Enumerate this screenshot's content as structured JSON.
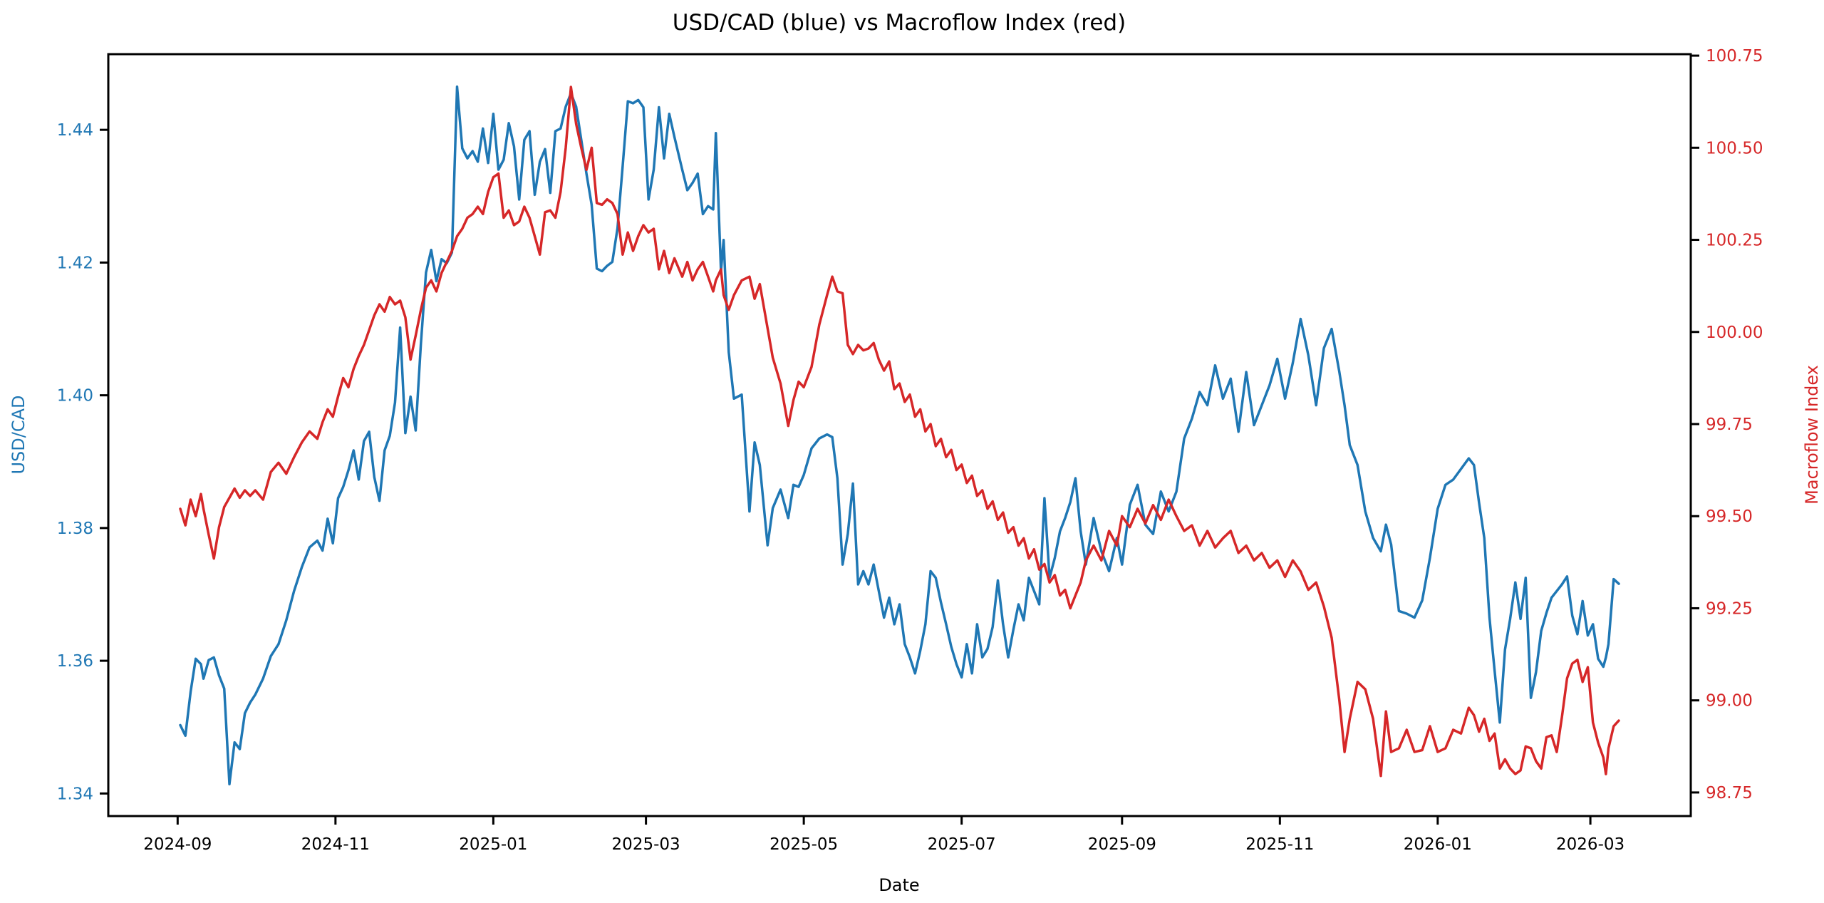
{
  "chart_data": {
    "type": "line",
    "title": "USD/CAD (blue) vs Macroflow Index (red)",
    "grid": false,
    "legend_position": "none",
    "x_axis": {
      "label": "Date",
      "unit": "days since 2024-09-02",
      "tick_labels": [
        "2024-09",
        "2024-11",
        "2025-01",
        "2025-03",
        "2025-05",
        "2025-07",
        "2025-09",
        "2025-11",
        "2026-01",
        "2026-03"
      ],
      "tick_days": [
        -1,
        60,
        121,
        180,
        241,
        302,
        364,
        425,
        486,
        545
      ]
    },
    "left_axis": {
      "label": "USD/CAD",
      "color": "#1f77b4",
      "range": [
        1.3366,
        1.4514
      ],
      "ticks": [
        1.34,
        1.36,
        1.38,
        1.4,
        1.42,
        1.44
      ],
      "tick_labels": [
        "1.34",
        "1.36",
        "1.38",
        "1.40",
        "1.42",
        "1.44"
      ]
    },
    "right_axis": {
      "label": "Macroflow Index",
      "color": "#d62728",
      "range": [
        98.686,
        100.754
      ],
      "ticks": [
        98.75,
        99.0,
        99.25,
        99.5,
        99.75,
        100.0,
        100.25,
        100.5,
        100.75
      ],
      "tick_labels": [
        "98.75",
        "99.00",
        "99.25",
        "99.50",
        "99.75",
        "100.00",
        "100.25",
        "100.50",
        "100.75"
      ]
    },
    "x": [
      0,
      2,
      4,
      6,
      8,
      9,
      11,
      13,
      15,
      17,
      19,
      21,
      23,
      25,
      27,
      29,
      32,
      35,
      38,
      41,
      44,
      47,
      50,
      53,
      55,
      57,
      59,
      61,
      63,
      65,
      67,
      69,
      71,
      73,
      75,
      77,
      79,
      81,
      83,
      85,
      87,
      89,
      91,
      93,
      95,
      97,
      99,
      101,
      103,
      105,
      107,
      109,
      111,
      113,
      115,
      117,
      119,
      121,
      123,
      125,
      127,
      129,
      131,
      133,
      135,
      137,
      139,
      141,
      143,
      145,
      147,
      149,
      151,
      153,
      155,
      157,
      159,
      161,
      163,
      165,
      167,
      169,
      171,
      173,
      175,
      177,
      179,
      181,
      183,
      185,
      187,
      189,
      191,
      194,
      196,
      198,
      200,
      202,
      204,
      206,
      207,
      209,
      210,
      212,
      214,
      217,
      220,
      222,
      224,
      227,
      229,
      232,
      235,
      237,
      239,
      241,
      244,
      247,
      250,
      252,
      254,
      256,
      258,
      260,
      262,
      264,
      266,
      268,
      270,
      272,
      274,
      276,
      278,
      280,
      282,
      284,
      286,
      288,
      290,
      292,
      294,
      296,
      298,
      300,
      302,
      304,
      306,
      308,
      310,
      312,
      314,
      316,
      318,
      320,
      322,
      324,
      326,
      328,
      330,
      332,
      334,
      336,
      338,
      340,
      342,
      344,
      346,
      348,
      350,
      353,
      356,
      359,
      362,
      364,
      367,
      370,
      373,
      376,
      379,
      382,
      385,
      388,
      391,
      394,
      397,
      400,
      403,
      406,
      409,
      412,
      415,
      418,
      421,
      424,
      427,
      430,
      433,
      436,
      439,
      442,
      445,
      448,
      450,
      452,
      455,
      458,
      461,
      464,
      466,
      468,
      471,
      474,
      477,
      480,
      483,
      486,
      489,
      492,
      495,
      498,
      500,
      502,
      504,
      506,
      508,
      510,
      512,
      514,
      516,
      518,
      520,
      522,
      524,
      526,
      528,
      530,
      532,
      534,
      536,
      538,
      540,
      542,
      544,
      546,
      548,
      550,
      551,
      552,
      554,
      556
    ],
    "series": [
      {
        "name": "USD/CAD",
        "axis": "left",
        "color": "#1f77b4",
        "values": [
          1.3503,
          1.3487,
          1.3553,
          1.3603,
          1.3595,
          1.3573,
          1.3601,
          1.3605,
          1.3578,
          1.3558,
          1.3414,
          1.3477,
          1.3467,
          1.3521,
          1.3537,
          1.3549,
          1.3573,
          1.3607,
          1.3625,
          1.3661,
          1.3705,
          1.3741,
          1.3771,
          1.3781,
          1.3766,
          1.3814,
          1.3777,
          1.3845,
          1.3862,
          1.3887,
          1.3917,
          1.3873,
          1.3931,
          1.3945,
          1.3877,
          1.3841,
          1.3917,
          1.3939,
          1.3989,
          1.4102,
          1.3943,
          1.3998,
          1.3947,
          1.4077,
          1.4185,
          1.4219,
          1.4172,
          1.4205,
          1.4199,
          1.4215,
          1.4465,
          1.4372,
          1.4357,
          1.4368,
          1.4352,
          1.4402,
          1.435,
          1.4424,
          1.434,
          1.4355,
          1.441,
          1.4375,
          1.4295,
          1.4385,
          1.4398,
          1.4302,
          1.4352,
          1.4371,
          1.4305,
          1.4398,
          1.4402,
          1.4435,
          1.4455,
          1.4435,
          1.4385,
          1.4334,
          1.4287,
          1.4191,
          1.4187,
          1.4195,
          1.4201,
          1.4252,
          1.4345,
          1.4443,
          1.444,
          1.4445,
          1.4434,
          1.4295,
          1.434,
          1.4434,
          1.4357,
          1.4424,
          1.4389,
          1.434,
          1.4309,
          1.432,
          1.4334,
          1.4273,
          1.4285,
          1.428,
          1.4395,
          1.4187,
          1.4234,
          1.4065,
          1.3995,
          1.4001,
          1.3825,
          1.3929,
          1.3895,
          1.3774,
          1.383,
          1.3858,
          1.3815,
          1.3865,
          1.3862,
          1.388,
          1.392,
          1.3935,
          1.3941,
          1.3937,
          1.3875,
          1.3745,
          1.3791,
          1.3867,
          1.3715,
          1.3735,
          1.3715,
          1.3745,
          1.3705,
          1.3665,
          1.3695,
          1.3655,
          1.3685,
          1.3625,
          1.3605,
          1.3581,
          1.3615,
          1.3655,
          1.3735,
          1.3725,
          1.3688,
          1.3655,
          1.3621,
          1.3595,
          1.3575,
          1.3625,
          1.3581,
          1.3655,
          1.3605,
          1.3618,
          1.3651,
          1.3721,
          1.3655,
          1.3605,
          1.3647,
          1.3685,
          1.3661,
          1.3725,
          1.3705,
          1.3685,
          1.3845,
          1.3725,
          1.3755,
          1.3795,
          1.3815,
          1.3839,
          1.3875,
          1.3795,
          1.3745,
          1.3815,
          1.3765,
          1.3735,
          1.3785,
          1.3745,
          1.3835,
          1.3865,
          1.3805,
          1.3791,
          1.3855,
          1.3825,
          1.3855,
          1.3935,
          1.3965,
          1.4005,
          1.3985,
          1.4045,
          1.3995,
          1.4025,
          1.3945,
          1.4035,
          1.3955,
          1.3985,
          1.4015,
          1.4055,
          1.3995,
          1.4049,
          1.4115,
          1.406,
          1.3985,
          1.4071,
          1.41,
          1.4035,
          1.3985,
          1.3925,
          1.3895,
          1.3825,
          1.3785,
          1.3765,
          1.3805,
          1.3775,
          1.3675,
          1.3671,
          1.3665,
          1.3691,
          1.3755,
          1.3829,
          1.3865,
          1.3873,
          1.3889,
          1.3905,
          1.3895,
          1.3838,
          1.3785,
          1.3665,
          1.3585,
          1.3507,
          1.3617,
          1.3663,
          1.3718,
          1.3663,
          1.3725,
          1.3544,
          1.3583,
          1.3645,
          1.3672,
          1.3695,
          1.3705,
          1.3715,
          1.3727,
          1.3668,
          1.364,
          1.369,
          1.3638,
          1.3655,
          1.3603,
          1.3591,
          1.3605,
          1.3625,
          1.3723,
          1.3716
        ]
      },
      {
        "name": "Macroflow Index",
        "axis": "right",
        "color": "#d62728",
        "values": [
          99.52,
          99.475,
          99.545,
          99.5,
          99.56,
          99.52,
          99.45,
          99.385,
          99.47,
          99.525,
          99.55,
          99.575,
          99.55,
          99.57,
          99.555,
          99.57,
          99.545,
          99.62,
          99.645,
          99.615,
          99.66,
          99.7,
          99.73,
          99.71,
          99.755,
          99.79,
          99.77,
          99.825,
          99.875,
          99.85,
          99.9,
          99.935,
          99.965,
          100.005,
          100.045,
          100.075,
          100.055,
          100.095,
          100.075,
          100.085,
          100.04,
          99.925,
          99.99,
          100.06,
          100.12,
          100.14,
          100.11,
          100.16,
          100.19,
          100.22,
          100.26,
          100.28,
          100.31,
          100.32,
          100.34,
          100.32,
          100.38,
          100.42,
          100.43,
          100.31,
          100.33,
          100.29,
          100.3,
          100.34,
          100.31,
          100.26,
          100.21,
          100.325,
          100.33,
          100.31,
          100.38,
          100.5,
          100.665,
          100.565,
          100.5,
          100.44,
          100.5,
          100.35,
          100.345,
          100.36,
          100.35,
          100.32,
          100.21,
          100.27,
          100.22,
          100.26,
          100.29,
          100.27,
          100.28,
          100.17,
          100.22,
          100.16,
          100.2,
          100.15,
          100.19,
          100.14,
          100.17,
          100.19,
          100.15,
          100.11,
          100.14,
          100.17,
          100.1,
          100.06,
          100.1,
          100.14,
          100.15,
          100.09,
          100.13,
          100.01,
          99.93,
          99.86,
          99.745,
          99.815,
          99.865,
          99.85,
          99.905,
          100.02,
          100.1,
          100.15,
          100.11,
          100.105,
          99.965,
          99.94,
          99.965,
          99.95,
          99.955,
          99.97,
          99.925,
          99.895,
          99.92,
          99.845,
          99.86,
          99.81,
          99.83,
          99.77,
          99.79,
          99.73,
          99.75,
          99.69,
          99.71,
          99.66,
          99.68,
          99.625,
          99.64,
          99.59,
          99.61,
          99.555,
          99.57,
          99.52,
          99.54,
          99.49,
          99.51,
          99.455,
          99.47,
          99.42,
          99.44,
          99.385,
          99.41,
          99.355,
          99.37,
          99.32,
          99.34,
          99.285,
          99.3,
          99.25,
          99.285,
          99.32,
          99.38,
          99.42,
          99.38,
          99.46,
          99.42,
          99.5,
          99.47,
          99.52,
          99.48,
          99.53,
          99.49,
          99.545,
          99.5,
          99.46,
          99.475,
          99.42,
          99.46,
          99.415,
          99.44,
          99.46,
          99.4,
          99.42,
          99.38,
          99.4,
          99.36,
          99.38,
          99.335,
          99.38,
          99.35,
          99.3,
          99.32,
          99.255,
          99.17,
          99.0,
          98.86,
          98.95,
          99.05,
          99.03,
          98.95,
          98.795,
          98.97,
          98.86,
          98.87,
          98.92,
          98.86,
          98.865,
          98.93,
          98.86,
          98.87,
          98.92,
          98.91,
          98.98,
          98.96,
          98.915,
          98.95,
          98.89,
          98.91,
          98.815,
          98.84,
          98.815,
          98.8,
          98.81,
          98.875,
          98.87,
          98.835,
          98.815,
          98.9,
          98.905,
          98.86,
          98.955,
          99.06,
          99.1,
          99.11,
          99.05,
          99.09,
          98.94,
          98.885,
          98.845,
          98.8,
          98.87,
          98.93,
          98.945
        ]
      }
    ]
  }
}
